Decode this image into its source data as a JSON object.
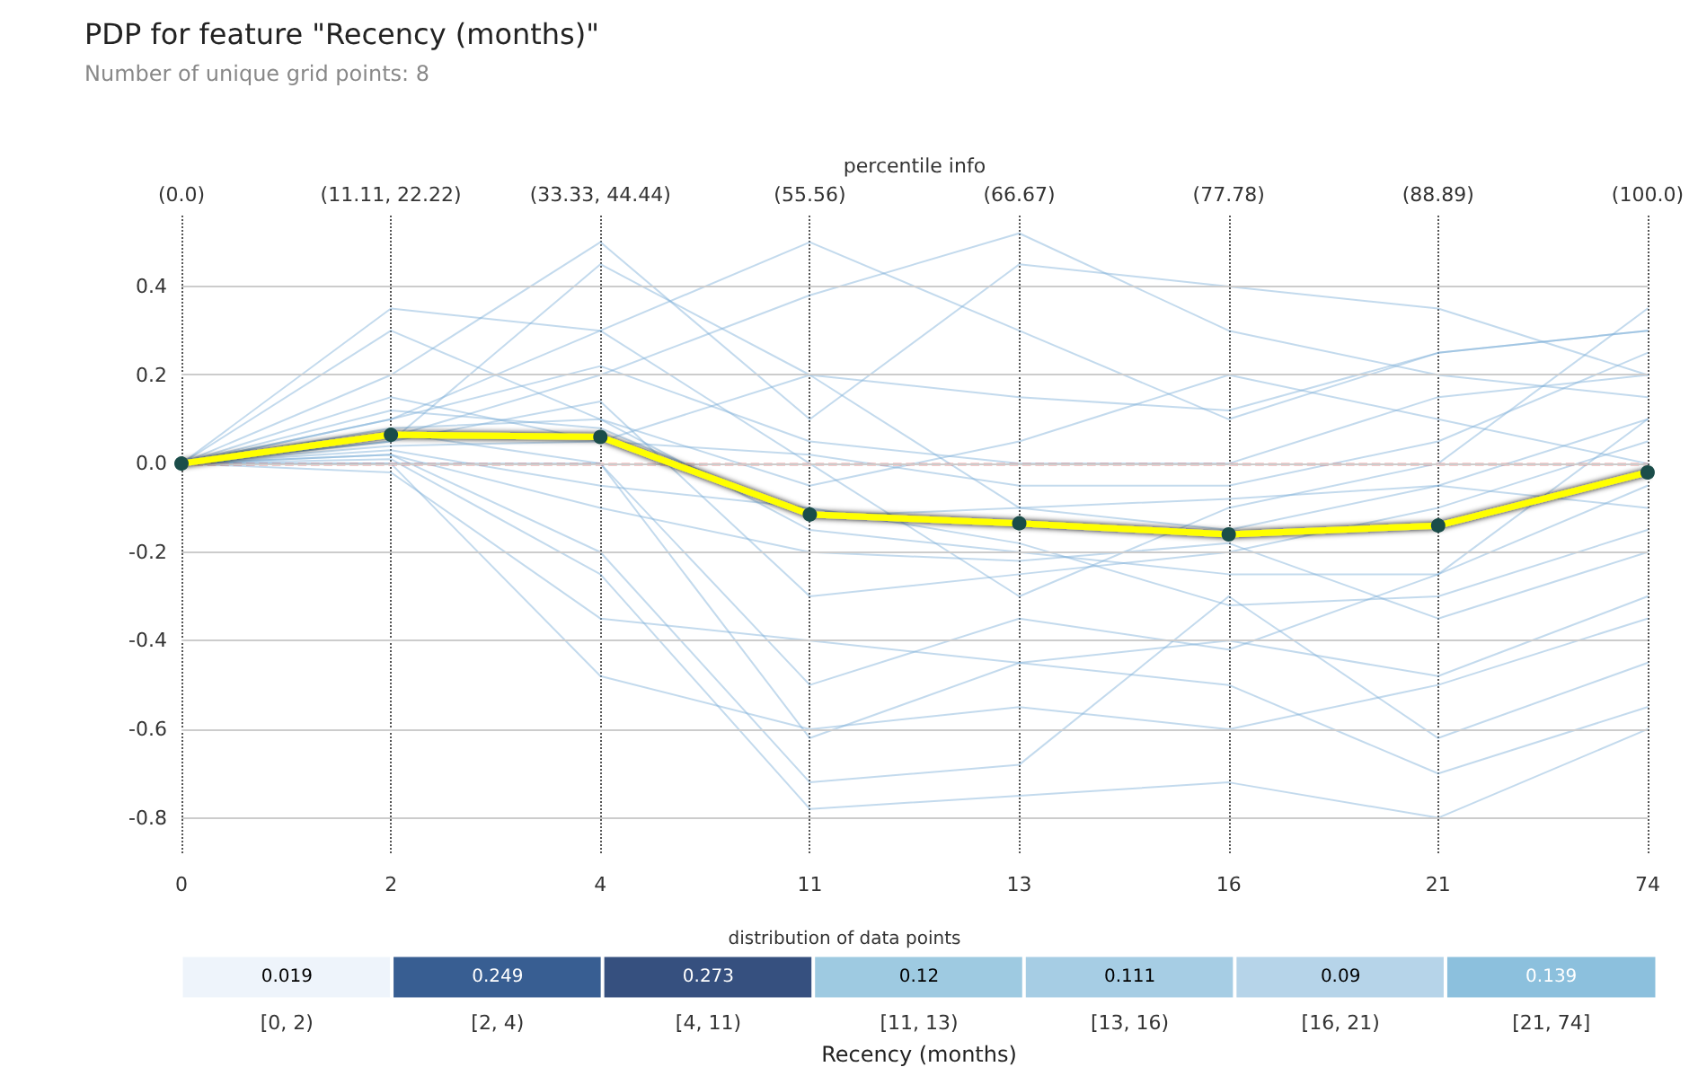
{
  "chart_data": [
    {
      "type": "line",
      "title": "PDP for feature \"Recency (months)\"",
      "subtitle": "Number of unique grid points: 8",
      "x2label": "percentile info",
      "categories": [
        "0",
        "2",
        "4",
        "11",
        "13",
        "16",
        "21",
        "74"
      ],
      "annotations": [
        "(0.0)",
        "(11.11, 22.22)",
        "(33.33, 44.44)",
        "(55.56)",
        "(66.67)",
        "(77.78)",
        "(88.89)",
        "(100.0)"
      ],
      "ylim": [
        -0.88,
        0.56
      ],
      "yticks": [
        -0.8,
        -0.6,
        -0.4,
        -0.2,
        {
          "value": 0,
          "label": "0.0"
        },
        0.2,
        0.4
      ],
      "grid": true,
      "marker": "none",
      "line_style": "solid",
      "ref_lines": [
        {
          "axis": "y",
          "value": 0,
          "color": "#e03030",
          "line_style": "dashed"
        }
      ],
      "series": [
        {
          "color": "#7aaed8",
          "values": [
            0,
            0.35,
            0.3,
            0.5,
            0.3,
            0.1,
            0.25,
            0.3
          ]
        },
        {
          "color": "#7aaed8",
          "values": [
            0,
            0.2,
            0.5,
            0.1,
            0.45,
            0.4,
            0.35,
            0.2
          ]
        },
        {
          "color": "#7aaed8",
          "values": [
            0,
            0.1,
            0.22,
            0.05,
            0.0,
            0.0,
            0.15,
            0.2
          ]
        },
        {
          "color": "#7aaed8",
          "values": [
            0,
            0.05,
            0.14,
            -0.3,
            -0.25,
            -0.2,
            -0.1,
            0.05
          ]
        },
        {
          "color": "#7aaed8",
          "values": [
            0,
            0.0,
            -0.48,
            -0.6,
            -0.55,
            -0.6,
            -0.5,
            -0.35
          ]
        },
        {
          "color": "#7aaed8",
          "values": [
            0,
            0.02,
            -0.2,
            -0.72,
            -0.68,
            -0.3,
            -0.62,
            -0.45
          ]
        },
        {
          "color": "#7aaed8",
          "values": [
            0,
            0.08,
            0.1,
            -0.15,
            -0.2,
            -0.25,
            -0.25,
            0.1
          ]
        },
        {
          "color": "#7aaed8",
          "values": [
            0,
            0.03,
            -0.05,
            -0.1,
            -0.18,
            -0.32,
            -0.3,
            -0.15
          ]
        },
        {
          "color": "#7aaed8",
          "values": [
            0,
            0.15,
            0.05,
            0.02,
            -0.05,
            -0.05,
            0.05,
            0.25
          ]
        },
        {
          "color": "#7aaed8",
          "values": [
            0,
            0.05,
            0.45,
            0.2,
            -0.1,
            -0.15,
            -0.05,
            0.1
          ]
        },
        {
          "color": "#7aaed8",
          "values": [
            0,
            0.0,
            0.0,
            -0.62,
            -0.45,
            -0.5,
            -0.7,
            -0.55
          ]
        },
        {
          "color": "#7aaed8",
          "values": [
            0,
            0.04,
            0.05,
            0.2,
            0.15,
            0.12,
            0.25,
            0.3
          ]
        },
        {
          "color": "#7aaed8",
          "values": [
            0,
            0.12,
            0.08,
            -0.12,
            -0.1,
            -0.08,
            -0.05,
            -0.1
          ]
        },
        {
          "color": "#7aaed8",
          "values": [
            0,
            -0.02,
            -0.35,
            -0.4,
            -0.45,
            -0.4,
            -0.48,
            -0.3
          ]
        },
        {
          "color": "#7aaed8",
          "values": [
            0,
            0.06,
            0.2,
            0.38,
            0.52,
            0.3,
            0.2,
            0.15
          ]
        },
        {
          "color": "#7aaed8",
          "values": [
            0,
            0.02,
            -0.1,
            -0.2,
            -0.22,
            -0.18,
            -0.35,
            -0.2
          ]
        },
        {
          "color": "#7aaed8",
          "values": [
            0,
            0.3,
            0.1,
            -0.05,
            0.05,
            0.2,
            0.1,
            0.0
          ]
        },
        {
          "color": "#7aaed8",
          "values": [
            0,
            0.01,
            -0.25,
            -0.78,
            -0.75,
            -0.72,
            -0.8,
            -0.6
          ]
        },
        {
          "color": "#7aaed8",
          "values": [
            0,
            0.1,
            0.3,
            0.0,
            -0.3,
            -0.1,
            0.0,
            0.35
          ]
        },
        {
          "color": "#7aaed8",
          "values": [
            0,
            0.07,
            0.0,
            -0.5,
            -0.35,
            -0.42,
            -0.25,
            -0.05
          ]
        },
        {
          "color": "#ffff00",
          "marker": "circle",
          "values": [
            0,
            0.065,
            0.06,
            -0.115,
            -0.135,
            -0.16,
            -0.14,
            -0.02
          ]
        }
      ]
    },
    {
      "type": "heatmap",
      "title": "distribution of data points",
      "xlabel": "Recency (months)",
      "categories": [
        "[0, 2)",
        "[2, 4)",
        "[4, 11)",
        "[11, 13)",
        "[13, 16)",
        "[16, 21)",
        "[21, 74]"
      ],
      "y_categories": [
        null
      ],
      "data_labels": true,
      "cells": [
        [
          0.019,
          0.249,
          0.273,
          0.12,
          0.111,
          0.09,
          0.139
        ]
      ]
    }
  ]
}
